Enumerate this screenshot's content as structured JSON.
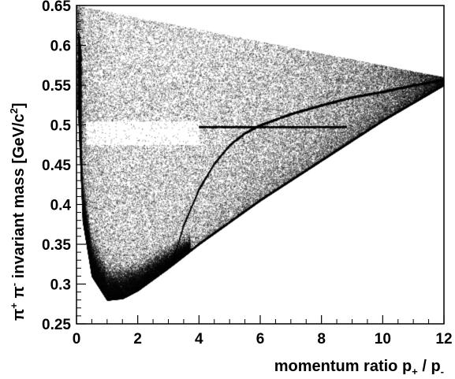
{
  "chart_data": {
    "type": "scatter",
    "title": "",
    "xlabel": {
      "main": "momentum ratio",
      "var1": "p",
      "sub1": "+",
      "sep": " / ",
      "var2": "p",
      "sub2": "-"
    },
    "ylabel": {
      "pi1": "π",
      "sup1": "+",
      "pi2": " π",
      "sup2": "-",
      "text": " invariant mass [GeV/c",
      "sup3": "2",
      "close": "]"
    },
    "xlim": [
      0,
      12
    ],
    "ylim": [
      0.25,
      0.65
    ],
    "xticks": [
      0,
      2,
      4,
      6,
      8,
      10,
      12
    ],
    "xtick_labels": [
      "0",
      "2",
      "4",
      "6",
      "8",
      "10",
      "12"
    ],
    "yticks": [
      0.25,
      0.3,
      0.35,
      0.4,
      0.45,
      0.5,
      0.55,
      0.6,
      0.65
    ],
    "ytick_labels": [
      "0.25",
      "0.3",
      "0.35",
      "0.4",
      "0.45",
      "0.5",
      "0.55",
      "0.6",
      "0.65"
    ],
    "grid": false,
    "legend": "none",
    "marker_color": "#000000",
    "features": {
      "kinematic_lower_edge": [
        [
          0.05,
          0.52
        ],
        [
          0.2,
          0.38
        ],
        [
          0.5,
          0.31
        ],
        [
          1.0,
          0.28
        ],
        [
          1.5,
          0.282
        ],
        [
          2.0,
          0.292
        ],
        [
          3.0,
          0.32
        ],
        [
          4.0,
          0.35
        ],
        [
          6.0,
          0.405
        ],
        [
          8.0,
          0.455
        ],
        [
          10.0,
          0.505
        ],
        [
          12.0,
          0.55
        ]
      ],
      "upper_band_edge": [
        [
          0.0,
          0.65
        ],
        [
          12.0,
          0.56
        ]
      ],
      "lambda_band": [
        [
          3.1,
          0.325
        ],
        [
          3.5,
          0.375
        ],
        [
          4.0,
          0.42
        ],
        [
          4.5,
          0.452
        ],
        [
          5.0,
          0.475
        ],
        [
          5.5,
          0.49
        ],
        [
          6.0,
          0.5
        ],
        [
          7.0,
          0.514
        ],
        [
          8.0,
          0.525
        ],
        [
          9.0,
          0.535
        ],
        [
          10.0,
          0.542
        ],
        [
          11.0,
          0.55
        ],
        [
          12.0,
          0.557
        ]
      ],
      "kaon_short_mass": 0.4977,
      "kaon_short_x_range": [
        4.0,
        8.8
      ],
      "depleted_window_x": [
        0.3,
        4.0
      ],
      "depleted_window_y": [
        0.475,
        0.505
      ]
    }
  }
}
